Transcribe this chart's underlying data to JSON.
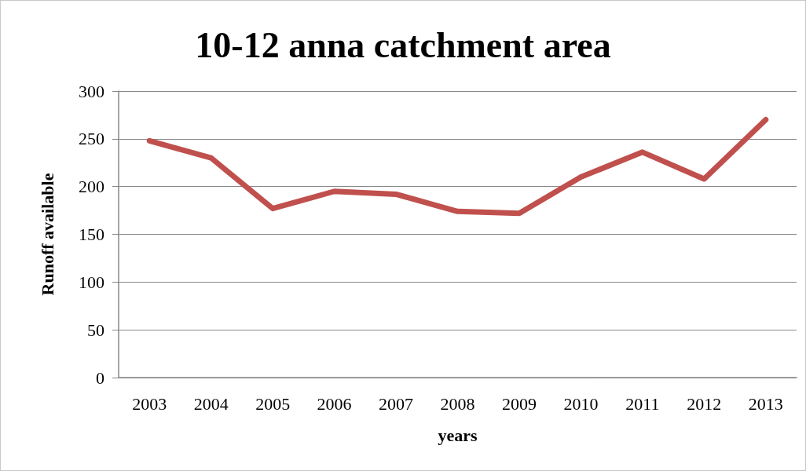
{
  "chart_data": {
    "type": "line",
    "title": "10-12 anna catchment area",
    "xlabel": "years",
    "ylabel": "Runoff available",
    "categories": [
      "2003",
      "2004",
      "2005",
      "2006",
      "2007",
      "2008",
      "2009",
      "2010",
      "2011",
      "2012",
      "2013"
    ],
    "series": [
      {
        "color": "#c0504d",
        "values": [
          248,
          230,
          177,
          195,
          192,
          174,
          172,
          210,
          236,
          208,
          270
        ]
      }
    ],
    "ylim": [
      0,
      300
    ],
    "yticks": [
      0,
      50,
      100,
      150,
      200,
      250,
      300
    ],
    "grid": "y",
    "marker": "none",
    "line_style": "solid"
  }
}
